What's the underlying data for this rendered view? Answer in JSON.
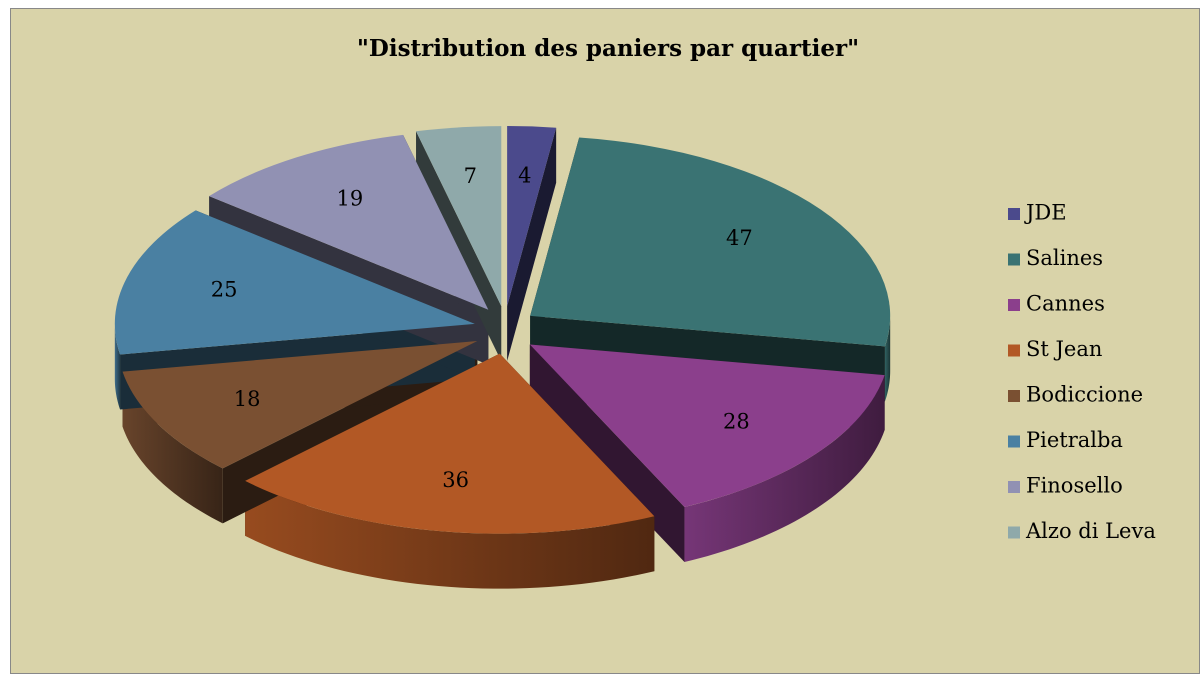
{
  "chart_data": {
    "type": "pie",
    "title": "\"Distribution des paniers par quartier\"",
    "labels": [
      "JDE",
      "Salines",
      "Cannes",
      "St Jean",
      "Bodiccione",
      "Pietralba",
      "Finosello",
      "Alzo di Leva"
    ],
    "values": [
      4,
      47,
      28,
      36,
      18,
      25,
      19,
      7
    ],
    "colors": [
      "#4b4a8c",
      "#3a7373",
      "#8b3f8c",
      "#b25825",
      "#7a5032",
      "#4a80a2",
      "#9191b3",
      "#8fa9aa"
    ],
    "legend": "right"
  }
}
